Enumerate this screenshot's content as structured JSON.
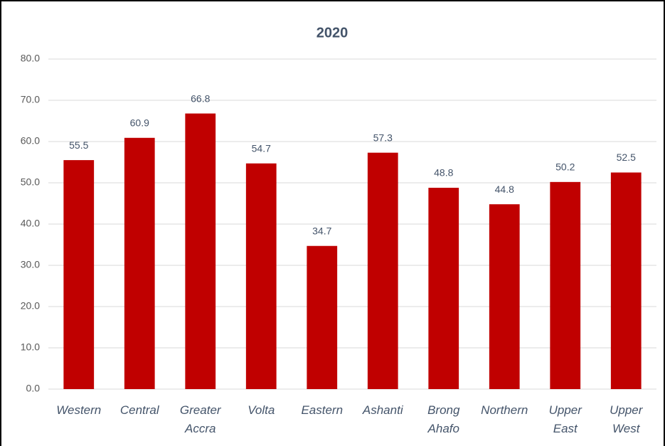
{
  "chart_data": {
    "type": "bar",
    "title": "2020",
    "categories": [
      "Western",
      "Central",
      "Greater Accra",
      "Volta",
      "Eastern",
      "Ashanti",
      "Brong Ahafo",
      "Northern",
      "Upper East",
      "Upper West"
    ],
    "values": [
      55.5,
      60.9,
      66.8,
      54.7,
      34.7,
      57.3,
      48.8,
      44.8,
      50.2,
      52.5
    ],
    "color": "#c00000",
    "ylim": [
      0,
      80
    ],
    "yticks": [
      {
        "value": 0,
        "label": "0.0"
      },
      {
        "value": 10,
        "label": "10.0"
      },
      {
        "value": 20,
        "label": "20.0"
      },
      {
        "value": 30,
        "label": "30.0"
      },
      {
        "value": 40,
        "label": "40.0"
      },
      {
        "value": 50,
        "label": "50.0"
      },
      {
        "value": 60,
        "label": "60.0"
      },
      {
        "value": 70,
        "label": "70.0"
      },
      {
        "value": 80,
        "label": "80.0"
      }
    ],
    "grid": true
  }
}
